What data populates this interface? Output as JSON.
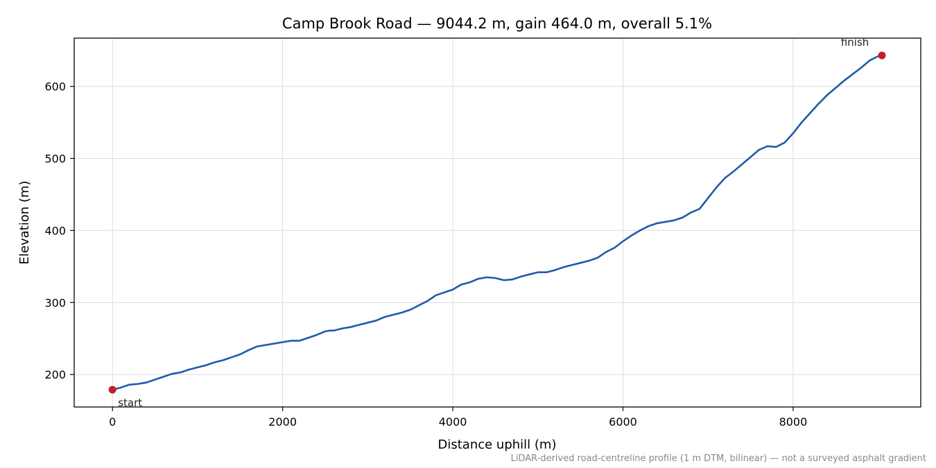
{
  "chart_data": {
    "type": "line",
    "title": "Camp Brook Road — 9044.2 m, gain 464.0 m, overall 5.1%",
    "xlabel": "Distance uphill (m)",
    "ylabel": "Elevation (m)",
    "footnote": "LiDAR-derived road-centreline profile (1 m DTM, bilinear) — not a surveyed asphalt gradient",
    "xlim": [
      -450,
      9500
    ],
    "ylim": [
      155,
      667
    ],
    "xticks": [
      0,
      2000,
      4000,
      6000,
      8000
    ],
    "yticks": [
      200,
      300,
      400,
      500,
      600
    ],
    "grid": true,
    "series_color": "#1f5aa8",
    "marker_color": "#c0202b",
    "series": [
      {
        "x": [
          0,
          100,
          200,
          300,
          400,
          500,
          600,
          700,
          800,
          900,
          1000,
          1100,
          1200,
          1300,
          1400,
          1500,
          1600,
          1700,
          1800,
          1900,
          2000,
          2100,
          2200,
          2300,
          2400,
          2500,
          2550,
          2600,
          2700,
          2800,
          2900,
          3000,
          3100,
          3200,
          3300,
          3400,
          3500,
          3600,
          3700,
          3800,
          3900,
          4000,
          4100,
          4200,
          4300,
          4400,
          4500,
          4600,
          4700,
          4800,
          4900,
          5000,
          5100,
          5200,
          5300,
          5400,
          5500,
          5600,
          5700,
          5800,
          5900,
          6000,
          6100,
          6200,
          6300,
          6400,
          6500,
          6600,
          6700,
          6800,
          6900,
          7000,
          7100,
          7200,
          7300,
          7400,
          7500,
          7600,
          7700,
          7800,
          7900,
          8000,
          8100,
          8200,
          8300,
          8400,
          8500,
          8600,
          8700,
          8800,
          8900,
          9000,
          9044.2
        ],
        "y": [
          179,
          182,
          186,
          187,
          189,
          193,
          197,
          201,
          203,
          207,
          210,
          213,
          217,
          220,
          224,
          228,
          234,
          239,
          241,
          243,
          245,
          247,
          247,
          251,
          255,
          260,
          261,
          261,
          264,
          266,
          269,
          272,
          275,
          280,
          283,
          286,
          290,
          296,
          302,
          310,
          314,
          318,
          325,
          328,
          333,
          335,
          334,
          331,
          332,
          336,
          339,
          342,
          342,
          345,
          349,
          352,
          355,
          358,
          362,
          370,
          376,
          385,
          393,
          400,
          406,
          410,
          412,
          414,
          418,
          425,
          430,
          445,
          460,
          473,
          482,
          492,
          502,
          512,
          517,
          516,
          522,
          535,
          550,
          563,
          576,
          588,
          598,
          608,
          617,
          626,
          636,
          642,
          643
        ]
      }
    ],
    "start": {
      "x": 0,
      "y": 179,
      "label": "start"
    },
    "finish": {
      "x": 9044.2,
      "y": 643,
      "label": "finish"
    }
  }
}
